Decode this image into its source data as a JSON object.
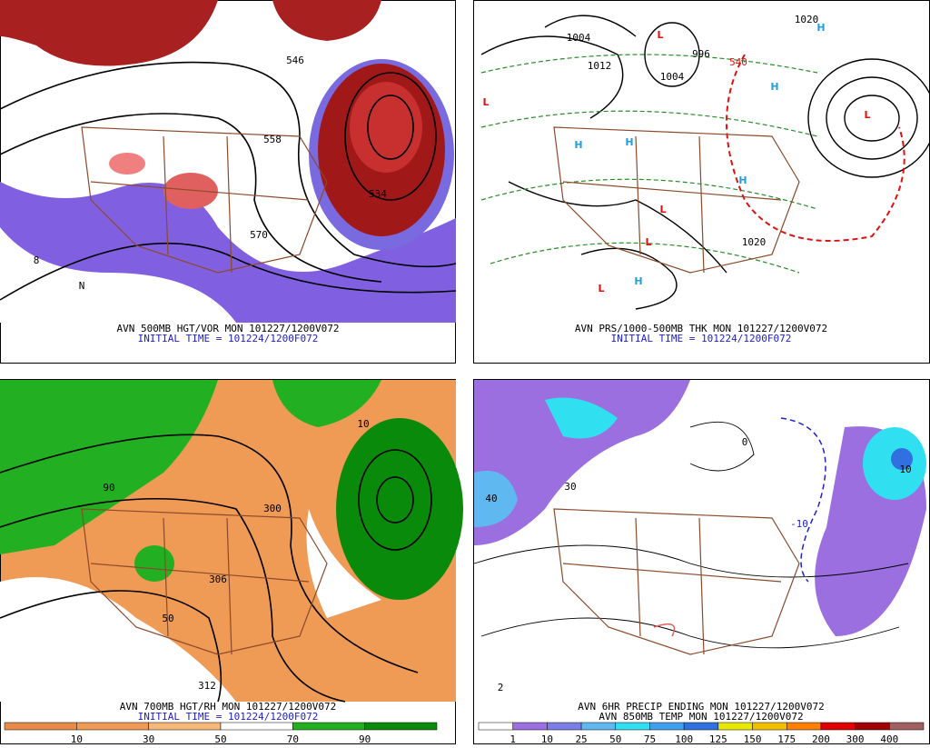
{
  "panels": [
    {
      "caption": [
        "AVN 500MB HGT/VOR MON 101227/1200V072",
        "INITIAL TIME = 101224/1200F072"
      ],
      "labels": [
        "546",
        "558",
        "534",
        "570",
        "8",
        "N"
      ]
    },
    {
      "caption": [
        "AVN PRS/1000-500MB THK MON 101227/1200V072",
        "INITIAL TIME = 101224/1200F072"
      ],
      "labels": [
        "L",
        "L",
        "H",
        "H",
        "H",
        "H",
        "L",
        "H",
        "L",
        "L",
        "H",
        "L",
        "1004",
        "1012",
        "1004",
        "996",
        "540",
        "1020",
        "1020"
      ]
    },
    {
      "caption": [
        "AVN 700MB HGT/RH MON 101227/1200V072",
        "INITIAL TIME = 101224/1200F072"
      ],
      "labels": [
        "300",
        "306",
        "312",
        "50",
        "90",
        "10"
      ],
      "colorbar": {
        "labels": [
          10,
          30,
          50,
          70,
          90
        ],
        "colors": [
          "#e98a48",
          "#ef9a55",
          "#f5b77a",
          "#ffffff",
          "#22b022",
          "#0a8a0a"
        ]
      }
    },
    {
      "caption": [
        "AVN 6HR PRECIP ENDING MON 101227/1200V072",
        "AVN 850MB TEMP MON 101227/1200V072"
      ],
      "labels": [
        "10",
        "40",
        "2",
        "30",
        "-10",
        "0"
      ],
      "colorbar": {
        "labels": [
          1,
          10,
          25,
          50,
          75,
          100,
          125,
          150,
          175,
          200,
          300,
          400
        ],
        "colors": [
          "#ffffff",
          "#9b6fe0",
          "#7d7de8",
          "#60b8f0",
          "#30e0f0",
          "#40a0f0",
          "#3070e0",
          "#e8e800",
          "#f0c000",
          "#ff8000",
          "#e00000",
          "#a00000",
          "#a06060"
        ]
      }
    }
  ]
}
